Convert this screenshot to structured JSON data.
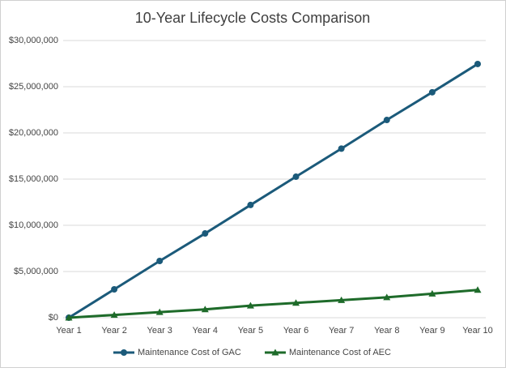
{
  "chart_data": {
    "type": "line",
    "title": "10-Year Lifecycle Costs Comparison",
    "categories": [
      "Year 1",
      "Year 2",
      "Year 3",
      "Year 4",
      "Year 5",
      "Year 6",
      "Year 7",
      "Year 8",
      "Year 9",
      "Year 10"
    ],
    "series": [
      {
        "name": "Maintenance Cost of GAC",
        "color": "#1b5a7a",
        "marker": "circle",
        "values": [
          0,
          3070000,
          6140000,
          9120000,
          12200000,
          15260000,
          18300000,
          21400000,
          24400000,
          27460000
        ]
      },
      {
        "name": "Maintenance Cost of AEC",
        "color": "#1e6b2a",
        "marker": "triangle",
        "values": [
          0,
          300000,
          600000,
          900000,
          1300000,
          1600000,
          1900000,
          2200000,
          2600000,
          3000000
        ]
      }
    ],
    "ylim": [
      0,
      30000000
    ],
    "yticks": [
      {
        "value": 0,
        "label": "$0"
      },
      {
        "value": 5000000,
        "label": "$5,000,000"
      },
      {
        "value": 10000000,
        "label": "$10,000,000"
      },
      {
        "value": 15000000,
        "label": "$15,000,000"
      },
      {
        "value": 20000000,
        "label": "$20,000,000"
      },
      {
        "value": 25000000,
        "label": "$25,000,000"
      },
      {
        "value": 30000000,
        "label": "$30,000,000"
      }
    ],
    "grid": true,
    "legend": "bottom"
  }
}
